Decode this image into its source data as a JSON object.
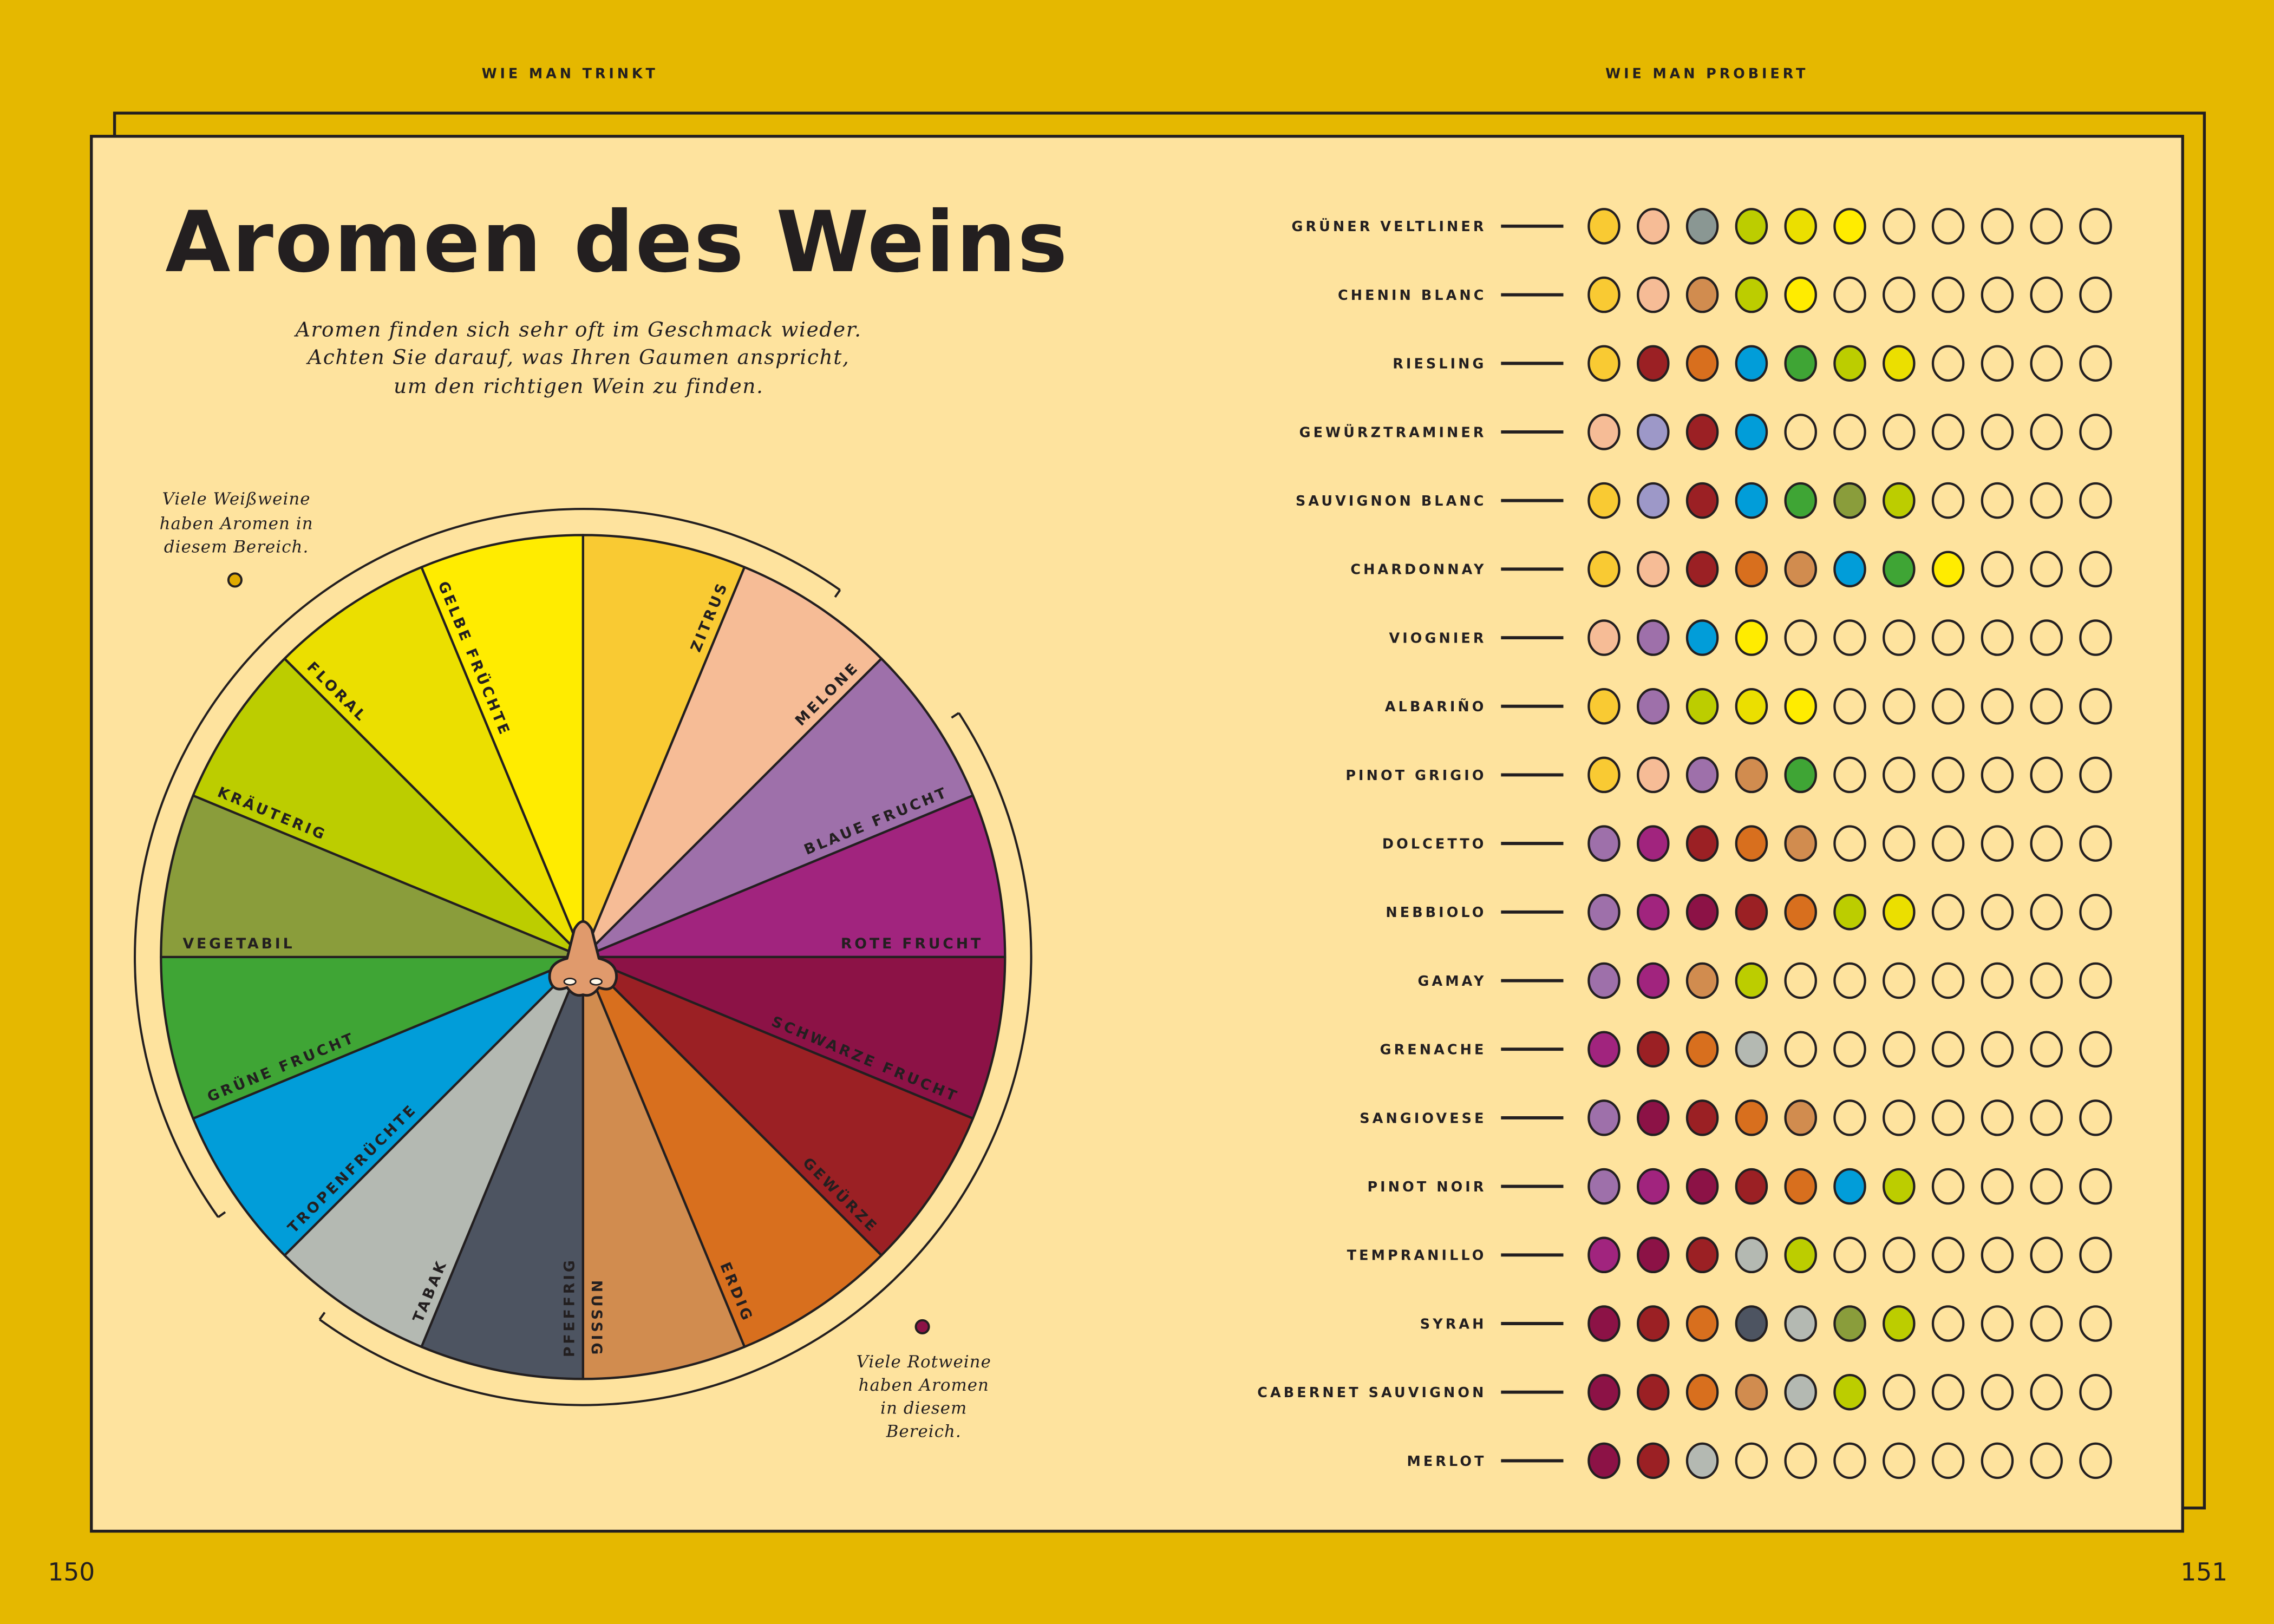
{
  "header": {
    "left": "WIE MAN TRINKT",
    "right": "WIE MAN PROBIERT"
  },
  "page_numbers": {
    "left": "150",
    "right": "151"
  },
  "title": "Aromen des Weins",
  "subtitle": [
    "Aromen finden sich sehr oft im Geschmack wieder.",
    "Achten Sie darauf, was Ihren Gaumen anspricht,",
    "um den richtigen Wein zu finden."
  ],
  "notes": {
    "white": {
      "lines": [
        "Viele Weißweine",
        "haben Aromen in",
        "diesem Bereich."
      ],
      "dot_color": "#e0aa00"
    },
    "red": {
      "lines": [
        "Viele Rotweine",
        "haben Aromen",
        "in diesem",
        "Bereich."
      ],
      "dot_color": "#8c1246"
    }
  },
  "colors": {
    "page_bg": "#e5b800",
    "paper": "#fee39e",
    "ink": "#231f20",
    "nose": "#e09a6c"
  },
  "wheel": {
    "segments": [
      {
        "label": "ZITRUS",
        "color": "#f9ca33"
      },
      {
        "label": "MELONE",
        "color": "#f6bc96"
      },
      {
        "label": "BLAUE FRUCHT",
        "color": "#9e70aa"
      },
      {
        "label": "ROTE FRUCHT",
        "color": "#a1247e"
      },
      {
        "label": "SCHWARZE FRUCHT",
        "color": "#8c1246"
      },
      {
        "label": "GEWÜRZE",
        "color": "#9b2024"
      },
      {
        "label": "ERDIG",
        "color": "#d86f1e"
      },
      {
        "label": "NUSSIG",
        "color": "#d18c4f"
      },
      {
        "label": "PFEFFRIG",
        "color": "#4d5461"
      },
      {
        "label": "TABAK",
        "color": "#b4b9b2"
      },
      {
        "label": "TROPENFRÜCHTE",
        "color": "#019dd9"
      },
      {
        "label": "GRÜNE FRUCHT",
        "color": "#3fa535"
      },
      {
        "label": "VEGETABIL",
        "color": "#8a9d3b"
      },
      {
        "label": "KRÄUTERIG",
        "color": "#bccd00"
      },
      {
        "label": "FLORAL",
        "color": "#ebdf00"
      },
      {
        "label": "GELBE FRÜCHTE",
        "color": "#ffec00"
      }
    ],
    "center_icon": "nose-icon"
  },
  "wines": [
    {
      "name": "GRÜNER VELTLINER",
      "aromas": [
        "#f9ca33",
        "#f6bc96",
        "#8a9793",
        "#bccd00",
        "#ebdf00",
        "#ffec00"
      ]
    },
    {
      "name": "CHENIN BLANC",
      "aromas": [
        "#f9ca33",
        "#f6bc96",
        "#d18c4f",
        "#bccd00",
        "#ffec00"
      ]
    },
    {
      "name": "RIESLING",
      "aromas": [
        "#f9ca33",
        "#9b2024",
        "#d86f1e",
        "#019dd9",
        "#3fa535",
        "#bccd00",
        "#ebdf00"
      ]
    },
    {
      "name": "GEWÜRZTRAMINER",
      "aromas": [
        "#f6bc96",
        "#9d98c8",
        "#9b2024",
        "#019dd9"
      ]
    },
    {
      "name": "SAUVIGNON BLANC",
      "aromas": [
        "#f9ca33",
        "#9d98c8",
        "#9b2024",
        "#019dd9",
        "#3fa535",
        "#8a9d3b",
        "#bccd00"
      ]
    },
    {
      "name": "CHARDONNAY",
      "aromas": [
        "#f9ca33",
        "#f6bc96",
        "#9b2024",
        "#d86f1e",
        "#d18c4f",
        "#019dd9",
        "#3fa535",
        "#ffec00"
      ]
    },
    {
      "name": "VIOGNIER",
      "aromas": [
        "#f6bc96",
        "#9e70aa",
        "#019dd9",
        "#ffec00"
      ]
    },
    {
      "name": "ALBARIÑO",
      "aromas": [
        "#f9ca33",
        "#9e70aa",
        "#bccd00",
        "#ebdf00",
        "#ffec00"
      ]
    },
    {
      "name": "PINOT GRIGIO",
      "aromas": [
        "#f9ca33",
        "#f6bc96",
        "#9e70aa",
        "#d18c4f",
        "#3fa535"
      ]
    },
    {
      "name": "DOLCETTO",
      "aromas": [
        "#9e70aa",
        "#a1247e",
        "#9b2024",
        "#d86f1e",
        "#d18c4f"
      ]
    },
    {
      "name": "NEBBIOLO",
      "aromas": [
        "#9e70aa",
        "#a1247e",
        "#8c1246",
        "#9b2024",
        "#d86f1e",
        "#bccd00",
        "#ebdf00"
      ]
    },
    {
      "name": "GAMAY",
      "aromas": [
        "#9e70aa",
        "#a1247e",
        "#d18c4f",
        "#bccd00"
      ]
    },
    {
      "name": "GRENACHE",
      "aromas": [
        "#a1247e",
        "#9b2024",
        "#d86f1e",
        "#b4b9b2"
      ]
    },
    {
      "name": "SANGIOVESE",
      "aromas": [
        "#9e70aa",
        "#8c1246",
        "#9b2024",
        "#d86f1e",
        "#d18c4f"
      ]
    },
    {
      "name": "PINOT NOIR",
      "aromas": [
        "#9e70aa",
        "#a1247e",
        "#8c1246",
        "#9b2024",
        "#d86f1e",
        "#019dd9",
        "#bccd00"
      ]
    },
    {
      "name": "TEMPRANILLO",
      "aromas": [
        "#a1247e",
        "#8c1246",
        "#9b2024",
        "#b4b9b2",
        "#bccd00"
      ]
    },
    {
      "name": "SYRAH",
      "aromas": [
        "#8c1246",
        "#9b2024",
        "#d86f1e",
        "#4d5461",
        "#b4b9b2",
        "#8a9d3b",
        "#bccd00"
      ]
    },
    {
      "name": "CABERNET SAUVIGNON",
      "aromas": [
        "#8c1246",
        "#9b2024",
        "#d86f1e",
        "#d18c4f",
        "#b4b9b2",
        "#bccd00"
      ]
    },
    {
      "name": "MERLOT",
      "aromas": [
        "#8c1246",
        "#9b2024",
        "#b4b9b2"
      ]
    }
  ]
}
